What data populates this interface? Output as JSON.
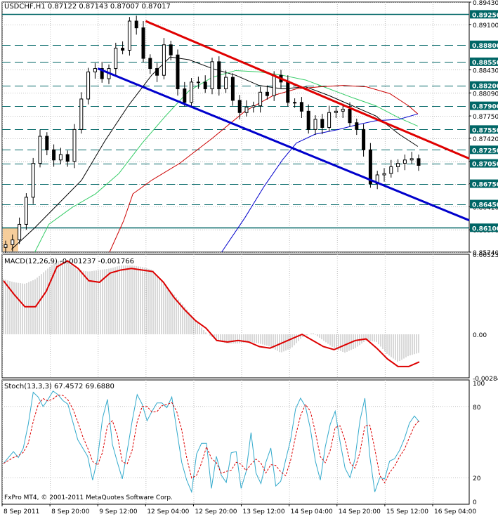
{
  "main": {
    "title": "USDCHF,H1  0.87122 0.87143 0.87007 0.87017",
    "copyright": "FxPro MT4, © 2001-2011 MetaQuotes Software Corp.",
    "price_scale": [
      "0.89430",
      "0.89100",
      "0.88430",
      "0.88090",
      "0.87750",
      "0.87420",
      "0.87080",
      "0.86750",
      "0.86410",
      "0.86070",
      "0.85740"
    ],
    "level_tags": [
      "0.89250",
      "0.88800",
      "0.88550",
      "0.88200",
      "0.87900",
      "0.87550",
      "0.87250",
      "0.87050",
      "0.86750",
      "0.86450",
      "0.86100"
    ],
    "time_labels": [
      "8 Sep 2011",
      "8 Sep 20:00",
      "9 Sep 12:00",
      "12 Sep 04:00",
      "12 Sep 20:00",
      "13 Sep 12:00",
      "14 Sep 04:00",
      "14 Sep 20:00",
      "15 Sep 12:00",
      "16 Sep 04:00"
    ]
  },
  "macd": {
    "title": "MACD(12,26,9) -0.001237 -0.001766",
    "scale": [
      "0.00523",
      "0.00",
      "-0.00284"
    ]
  },
  "stoch": {
    "title": "Stoch(13,3,3) 67.4572 69.6880",
    "scale": [
      "100",
      "80",
      "20",
      "0"
    ]
  },
  "colors": {
    "grid": "#c0c0c0",
    "frame": "#000000",
    "level_line": "#006666",
    "red_channel": "#e00000",
    "blue_channel": "#0000cc",
    "ma_black": "#000000",
    "ma_green": "#33cc66",
    "ma_red": "#cc0000",
    "ma_blue": "#0000cc",
    "macd_hist": "#b0b0b0",
    "macd_signal": "#dd0000",
    "stoch_main": "#33aacc",
    "stoch_signal": "#dd0000",
    "highlight": "#f4c48a"
  },
  "chart_data": [
    {
      "type": "candlestick",
      "title": "USDCHF,H1",
      "ylim": [
        0.8574,
        0.8943
      ],
      "levels": [
        0.8925,
        0.888,
        0.8855,
        0.882,
        0.879,
        0.8755,
        0.8725,
        0.8705,
        0.8675,
        0.8645,
        0.861
      ],
      "last_price": 0.87017,
      "trendlines": [
        {
          "name": "red channel",
          "start": [
            "12 Sep 04:00",
            0.8915
          ],
          "end": [
            "16 Sep 04:00",
            0.8735
          ]
        },
        {
          "name": "blue channel",
          "start": [
            "9 Sep 12:00",
            0.8845
          ],
          "end": [
            "16 Sep 04:00",
            0.8643
          ]
        }
      ],
      "close_path": [
        0.8585,
        0.8592,
        0.8615,
        0.8655,
        0.8705,
        0.8745,
        0.8725,
        0.871,
        0.8718,
        0.8708,
        0.8755,
        0.88,
        0.884,
        0.8845,
        0.883,
        0.8845,
        0.8875,
        0.8872,
        0.8915,
        0.8905,
        0.886,
        0.8845,
        0.8835,
        0.888,
        0.8865,
        0.8815,
        0.8795,
        0.8825,
        0.8825,
        0.8815,
        0.8855,
        0.8815,
        0.8832,
        0.8798,
        0.878,
        0.8788,
        0.879,
        0.881,
        0.8805,
        0.8835,
        0.8825,
        0.8795,
        0.8795,
        0.8782,
        0.8755,
        0.877,
        0.8758,
        0.878,
        0.8782,
        0.8785,
        0.8765,
        0.8755,
        0.8725,
        0.8675,
        0.8688,
        0.869,
        0.87,
        0.8705,
        0.871,
        0.8712,
        0.8702
      ]
    },
    {
      "type": "line",
      "title": "MACD(12,26,9)",
      "ylim": [
        -0.00284,
        0.00523
      ],
      "macd": -0.001237,
      "signal": -0.001766,
      "hist_path": [
        0.0036,
        0.0034,
        0.0033,
        0.0036,
        0.0042,
        0.0048,
        0.0047,
        0.0042,
        0.0041,
        0.0042,
        0.0043,
        0.0045,
        0.0045,
        0.0044,
        0.0042,
        0.0033,
        0.0026,
        0.0018,
        0.0009,
        0.0001,
        -0.0004,
        -0.0006,
        -0.0006,
        -0.0005,
        -0.0006,
        -0.0008,
        -0.0012,
        -0.0009,
        -0.0002,
        0.0001,
        -0.0004,
        -0.0009,
        -0.0012,
        -0.0009,
        -0.0004,
        -0.0005,
        -0.0013,
        -0.0018,
        -0.0014,
        -0.0012
      ],
      "signal_path": [
        0.0035,
        0.0026,
        0.0018,
        0.0018,
        0.0028,
        0.0044,
        0.0048,
        0.0043,
        0.0035,
        0.0034,
        0.004,
        0.0042,
        0.0043,
        0.0042,
        0.0041,
        0.0034,
        0.0024,
        0.0016,
        0.0009,
        0.0004,
        -0.0004,
        -0.0005,
        -0.0004,
        -0.0005,
        -0.0008,
        -0.0009,
        -0.0006,
        -0.0003,
        0.0,
        -0.0004,
        -0.0008,
        -0.001,
        -0.0007,
        -0.0004,
        -0.0003,
        -0.0009,
        -0.0016,
        -0.0021,
        -0.0021,
        -0.0018
      ]
    },
    {
      "type": "line",
      "title": "Stoch(13,3,3)",
      "ylim": [
        0,
        100
      ],
      "main": 67.4572,
      "signal": 69.688,
      "levels": [
        80,
        20
      ],
      "main_path": [
        32,
        37,
        42,
        37,
        45,
        65,
        92,
        88,
        80,
        86,
        93,
        90,
        85,
        82,
        67,
        52,
        45,
        38,
        18,
        36,
        70,
        86,
        48,
        33,
        19,
        43,
        68,
        90,
        82,
        68,
        76,
        83,
        83,
        79,
        88,
        60,
        33,
        18,
        8,
        40,
        49,
        49,
        11,
        38,
        22,
        16,
        41,
        42,
        11,
        25,
        58,
        24,
        15,
        33,
        45,
        13,
        17,
        35,
        52,
        78,
        87,
        80,
        61,
        34,
        18,
        46,
        65,
        76,
        50,
        28,
        20,
        36,
        68,
        87,
        38,
        8,
        20,
        19,
        34,
        36,
        43,
        53,
        66,
        72,
        67
      ]
    }
  ]
}
